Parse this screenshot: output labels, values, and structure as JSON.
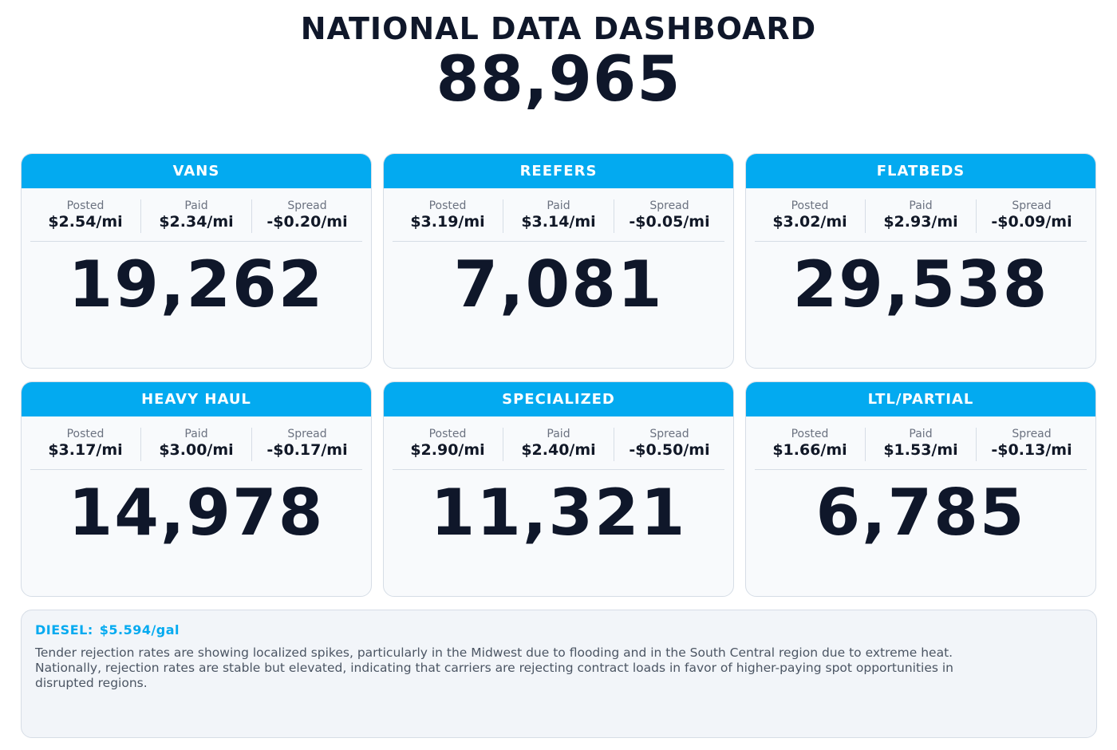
{
  "header": {
    "title": "NATIONAL DATA DASHBOARD",
    "total": "88,965"
  },
  "labels": {
    "posted": "Posted",
    "paid": "Paid",
    "spread": "Spread"
  },
  "cards": [
    {
      "name": "VANS",
      "posted": "$2.54/mi",
      "paid": "$2.34/mi",
      "spread": "-$0.20/mi",
      "count": "19,262"
    },
    {
      "name": "REEFERS",
      "posted": "$3.19/mi",
      "paid": "$3.14/mi",
      "spread": "-$0.05/mi",
      "count": "7,081"
    },
    {
      "name": "FLATBEDS",
      "posted": "$3.02/mi",
      "paid": "$2.93/mi",
      "spread": "-$0.09/mi",
      "count": "29,538"
    },
    {
      "name": "HEAVY HAUL",
      "posted": "$3.17/mi",
      "paid": "$3.00/mi",
      "spread": "-$0.17/mi",
      "count": "14,978"
    },
    {
      "name": "SPECIALIZED",
      "posted": "$2.90/mi",
      "paid": "$2.40/mi",
      "spread": "-$0.50/mi",
      "count": "11,321"
    },
    {
      "name": "LTL/PARTIAL",
      "posted": "$1.66/mi",
      "paid": "$1.53/mi",
      "spread": "-$0.13/mi",
      "count": "6,785"
    }
  ],
  "notes": {
    "diesel_label": "DIESEL:",
    "diesel_value": "$5.594/gal",
    "commentary": "Tender rejection rates are showing localized spikes, particularly in the Midwest due to flooding and in the South Central region due to extreme heat. Nationally, rejection rates are stable but elevated, indicating that carriers are rejecting contract loads in favor of higher-paying spot opportunities in disrupted regions."
  },
  "colors": {
    "accent": "#03aaf0",
    "text_dark": "#0f172a",
    "card_bg": "#f8fafc",
    "notes_bg": "#f2f5f9"
  }
}
